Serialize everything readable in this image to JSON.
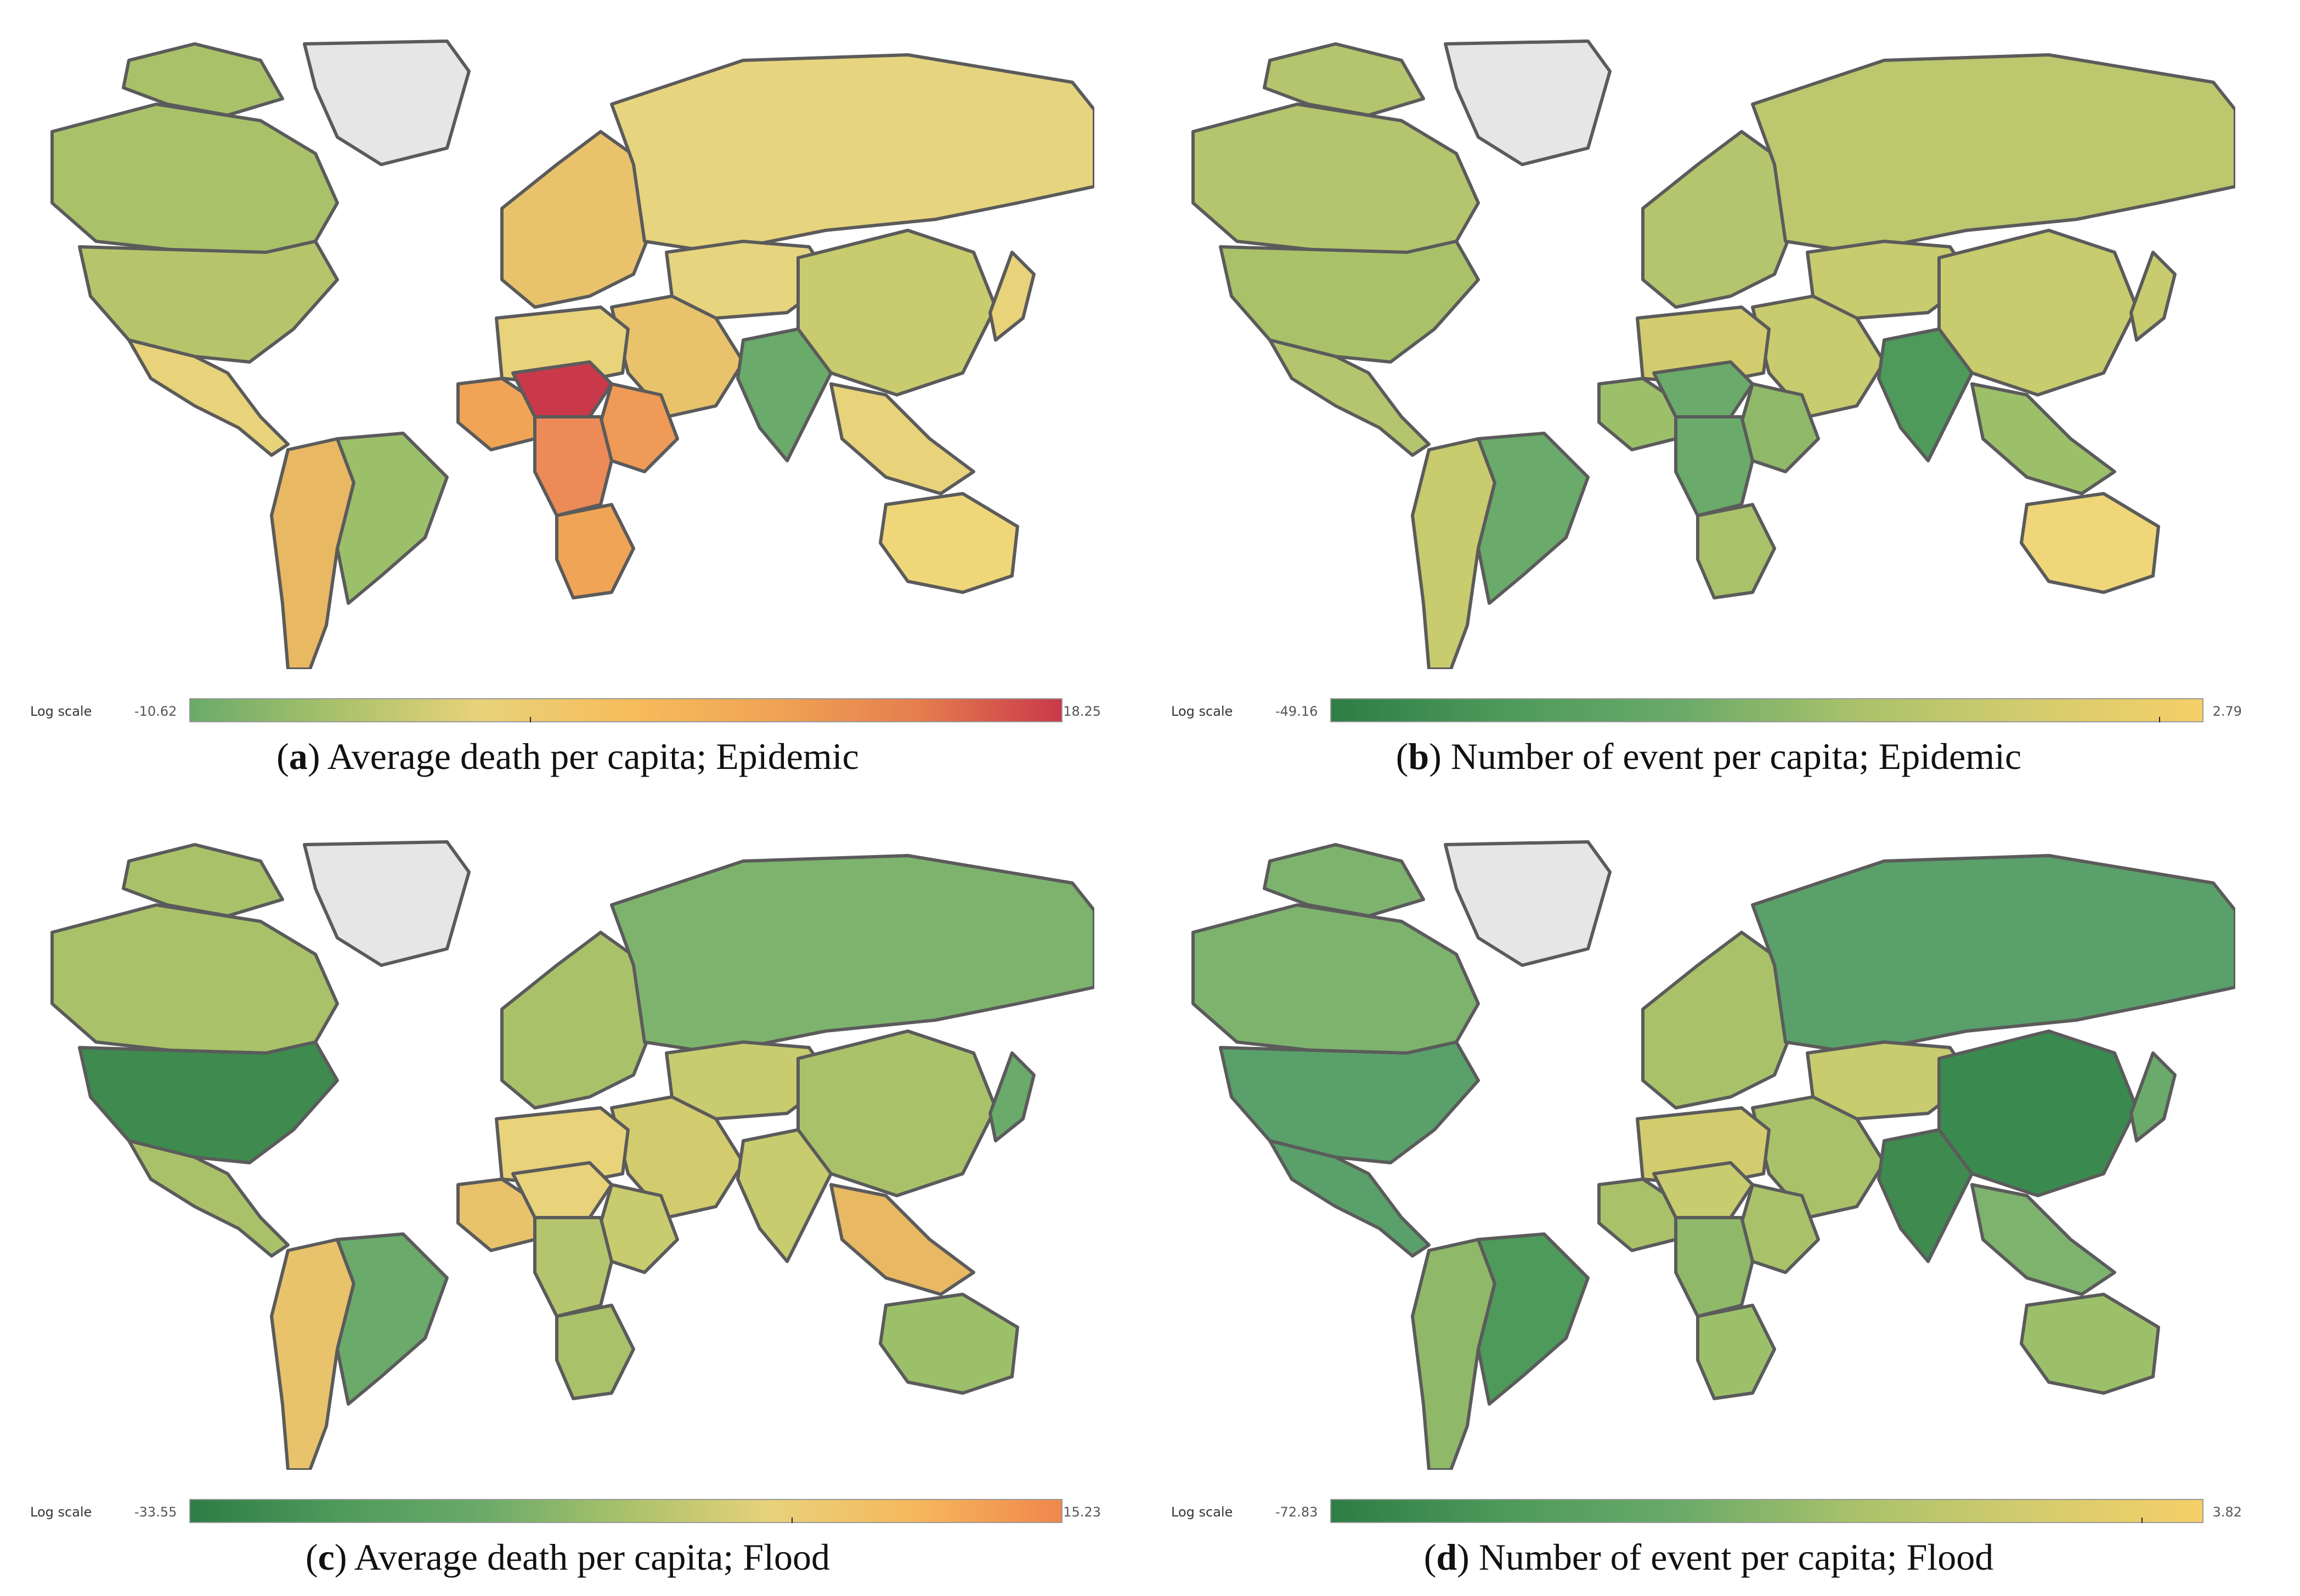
{
  "colors": {
    "ocean": "#ffffff",
    "greenland_gray": "#e6e6e6",
    "border": "#5b5b5b",
    "dark_green": "#2e7d46",
    "mid_green": "#6aaa6a",
    "light_green": "#a9c26a",
    "yellow_green": "#c8cb6e",
    "yellow": "#e8d27a",
    "orange": "#f0a455",
    "red": "#c9394a"
  },
  "panels": [
    {
      "id": "a",
      "letter": "a",
      "caption_text": "Average death per capita; Epidemic",
      "scale_label": "Log scale",
      "scale_min": "-10.62",
      "scale_max": "18.25",
      "gradient": [
        "#6aaa6a",
        "#a9c26a",
        "#e8d27a",
        "#f6bd5c",
        "#f0a455",
        "#e57f4e",
        "#c9394a"
      ],
      "tick_fraction": 0.39,
      "map_colors": {
        "north_america": "#a9c26a",
        "usa": "#b6c56c",
        "central_america": "#e8d27a",
        "south_america": "#e8b863",
        "brazil": "#9cc06a",
        "greenland": "#e6e6e6",
        "europe": "#e8c36c",
        "russia": "#e6d47f",
        "central_asia": "#e6d47f",
        "middle_east": "#e8c36c",
        "north_africa": "#e8d27a",
        "west_africa": "#f0a455",
        "sahel": "#c9394a",
        "central_africa": "#ec8a58",
        "east_africa": "#ef9a56",
        "southern_africa": "#f0a455",
        "india": "#6aaa6a",
        "china": "#c8cb6e",
        "southeast_asia": "#e8d27a",
        "australia": "#efd679",
        "japan": "#e8d27a"
      }
    },
    {
      "id": "b",
      "letter": "b",
      "caption_text": "Number of event per capita; Epidemic",
      "scale_label": "Log scale",
      "scale_min": "-49.16",
      "scale_max": "2.79",
      "gradient": [
        "#2e7d46",
        "#4d9a5a",
        "#6aaa6a",
        "#a9c26a",
        "#d3cc6e",
        "#f6cf68"
      ],
      "tick_fraction": 0.95,
      "map_colors": {
        "north_america": "#b4c56e",
        "usa": "#a9c26a",
        "central_america": "#b4c56e",
        "south_america": "#c8cb6e",
        "brazil": "#6aaa6a",
        "greenland": "#e6e6e6",
        "europe": "#b4c56e",
        "russia": "#bcc76e",
        "central_asia": "#c8cb6e",
        "middle_east": "#c8cb6e",
        "north_africa": "#d3cc6e",
        "west_africa": "#9cc06a",
        "sahel": "#6aaa6a",
        "central_africa": "#6aaa6a",
        "east_africa": "#8fb868",
        "southern_africa": "#a9c26a",
        "india": "#4d9a5a",
        "china": "#c8cb6e",
        "southeast_asia": "#9cc06a",
        "australia": "#efd679",
        "japan": "#c8cb6e"
      }
    },
    {
      "id": "c",
      "letter": "c",
      "caption_text": "Average death per capita; Flood",
      "scale_label": "Log scale",
      "scale_min": "-33.55",
      "scale_max": "15.23",
      "gradient": [
        "#2e7d46",
        "#4d9a5a",
        "#6aaa6a",
        "#a9c26a",
        "#e8d27a",
        "#f6b75c",
        "#f0874c"
      ],
      "tick_fraction": 0.69,
      "map_colors": {
        "north_america": "#a9c26a",
        "usa": "#3e8a4f",
        "central_america": "#a9c26a",
        "south_america": "#e8c36c",
        "brazil": "#6aaa6a",
        "greenland": "#e6e6e6",
        "europe": "#a9c26a",
        "russia": "#7eb36e",
        "central_asia": "#c8cb6e",
        "middle_east": "#d3cc6e",
        "north_africa": "#e8d27a",
        "west_africa": "#e8c36c",
        "sahel": "#e8d27a",
        "central_africa": "#b4c56e",
        "east_africa": "#c8cb6e",
        "southern_africa": "#a9c26a",
        "india": "#c8cb6e",
        "china": "#a9c26a",
        "southeast_asia": "#e8b863",
        "australia": "#9cc06a",
        "japan": "#6aaa6a"
      }
    },
    {
      "id": "d",
      "letter": "d",
      "caption_text": "Number of event per capita; Flood",
      "scale_label": "Log scale",
      "scale_min": "-72.83",
      "scale_max": "3.82",
      "gradient": [
        "#2e7d46",
        "#4d9a5a",
        "#6aaa6a",
        "#a9c26a",
        "#d3cc6e",
        "#f6cf68"
      ],
      "tick_fraction": 0.93,
      "map_colors": {
        "north_america": "#7eb36e",
        "usa": "#5aa06a",
        "central_america": "#5aa06a",
        "south_america": "#8fb868",
        "brazil": "#4d9a5a",
        "greenland": "#e6e6e6",
        "europe": "#a9c26a",
        "russia": "#5aa06a",
        "central_asia": "#c8cb6e",
        "middle_east": "#a9c26a",
        "north_africa": "#d3cc6e",
        "west_africa": "#a9c26a",
        "sahel": "#c8cb6e",
        "central_africa": "#8fb868",
        "east_africa": "#a9c26a",
        "southern_africa": "#9cc06a",
        "india": "#3e8a4f",
        "china": "#3a8a50",
        "southeast_asia": "#7eb36e",
        "australia": "#9cc06a",
        "japan": "#6aaa6a"
      }
    }
  ]
}
